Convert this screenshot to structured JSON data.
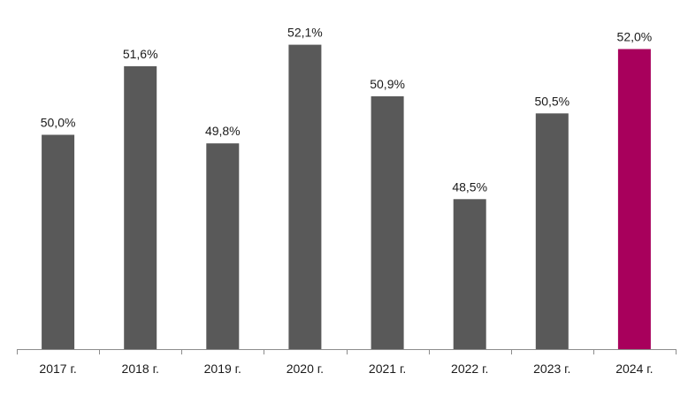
{
  "chart_data": {
    "type": "bar",
    "categories": [
      "2017 г.",
      "2018 г.",
      "2019 г.",
      "2020 г.",
      "2021 г.",
      "2022 г.",
      "2023 г.",
      "2024 г."
    ],
    "values": [
      50.0,
      51.6,
      49.8,
      52.1,
      50.9,
      48.5,
      50.5,
      52.0
    ],
    "data_labels": [
      "50,0%",
      "51,6%",
      "49,8%",
      "52,1%",
      "50,9%",
      "48,5%",
      "50,5%",
      "52,0%"
    ],
    "title": "",
    "xlabel": "",
    "ylabel": "",
    "ylim": [
      45.0,
      52.6
    ],
    "grid": false,
    "legend": "none",
    "colors": {
      "default": "#595959",
      "highlight": "#a8005c",
      "highlight_index": 7
    }
  }
}
